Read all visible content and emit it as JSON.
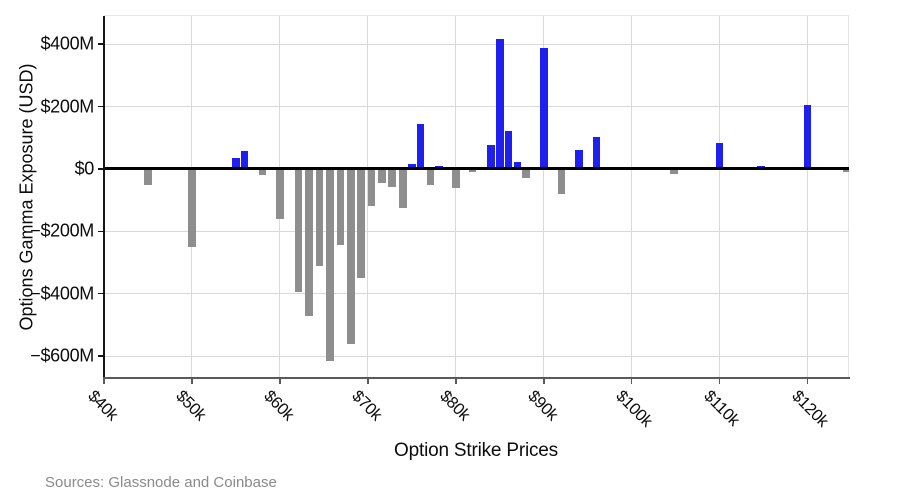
{
  "chart_data": {
    "type": "bar",
    "title": "",
    "xlabel": "Option Strike Prices",
    "ylabel": "Options Gamma Exposure (USD)",
    "source_note": "Sources: Glassnode and Coinbase",
    "x_unit": "strike price, thousands of USD",
    "y_unit": "millions of USD",
    "xlim": [
      40,
      124.7
    ],
    "ylim": [
      -670,
      490
    ],
    "grid": true,
    "colors": {
      "positive_bar": "#2020ee",
      "negative_bar": "#8e8e8e",
      "gridline": "#d9d9d9",
      "zero_line": "#000000",
      "axis_text": "#0c0c0c",
      "source_text": "#8a8a8a"
    },
    "y_ticks": [
      {
        "value": 400,
        "label": "$400M"
      },
      {
        "value": 200,
        "label": "$200M"
      },
      {
        "value": 0,
        "label": "$0"
      },
      {
        "value": -200,
        "label": "−$200M"
      },
      {
        "value": -400,
        "label": "−$400M"
      },
      {
        "value": -600,
        "label": "−$600M"
      }
    ],
    "x_ticks": [
      {
        "value": 40,
        "label": "$40k"
      },
      {
        "value": 50,
        "label": "$50k"
      },
      {
        "value": 60,
        "label": "$60k"
      },
      {
        "value": 70,
        "label": "$70k"
      },
      {
        "value": 80,
        "label": "$80k"
      },
      {
        "value": 90,
        "label": "$90k"
      },
      {
        "value": 100,
        "label": "$100k"
      },
      {
        "value": 110,
        "label": "$110k"
      },
      {
        "value": 120,
        "label": "$120k"
      }
    ],
    "bars": [
      {
        "strike_k": 45,
        "value_m": -50
      },
      {
        "strike_k": 50,
        "value_m": -250
      },
      {
        "strike_k": 52,
        "value_m": -5
      },
      {
        "strike_k": 54,
        "value_m": -5
      },
      {
        "strike_k": 55,
        "value_m": 35
      },
      {
        "strike_k": 56,
        "value_m": 58
      },
      {
        "strike_k": 58,
        "value_m": -20
      },
      {
        "strike_k": 60,
        "value_m": -160
      },
      {
        "strike_k": 62.1,
        "value_m": -395
      },
      {
        "strike_k": 63.3,
        "value_m": -470
      },
      {
        "strike_k": 64.5,
        "value_m": -310
      },
      {
        "strike_k": 65.7,
        "value_m": -615
      },
      {
        "strike_k": 66.9,
        "value_m": -245
      },
      {
        "strike_k": 68.1,
        "value_m": -560
      },
      {
        "strike_k": 69.2,
        "value_m": -350
      },
      {
        "strike_k": 70.4,
        "value_m": -118
      },
      {
        "strike_k": 71.6,
        "value_m": -45
      },
      {
        "strike_k": 72.75,
        "value_m": -58
      },
      {
        "strike_k": 74,
        "value_m": -125
      },
      {
        "strike_k": 75,
        "value_m": 15
      },
      {
        "strike_k": 76,
        "value_m": 145
      },
      {
        "strike_k": 77.1,
        "value_m": -50
      },
      {
        "strike_k": 78.1,
        "value_m": 10
      },
      {
        "strike_k": 80,
        "value_m": -62
      },
      {
        "strike_k": 81.9,
        "value_m": -10
      },
      {
        "strike_k": 84,
        "value_m": 78
      },
      {
        "strike_k": 85,
        "value_m": 415
      },
      {
        "strike_k": 86,
        "value_m": 120
      },
      {
        "strike_k": 87,
        "value_m": 22
      },
      {
        "strike_k": 88,
        "value_m": -30
      },
      {
        "strike_k": 90,
        "value_m": 388
      },
      {
        "strike_k": 92,
        "value_m": -80
      },
      {
        "strike_k": 94,
        "value_m": 60
      },
      {
        "strike_k": 96,
        "value_m": 103
      },
      {
        "strike_k": 100,
        "value_m": 7
      },
      {
        "strike_k": 104.8,
        "value_m": -15
      },
      {
        "strike_k": 110,
        "value_m": 82
      },
      {
        "strike_k": 114.7,
        "value_m": 10
      },
      {
        "strike_k": 120,
        "value_m": 205
      },
      {
        "strike_k": 124.5,
        "value_m": -10
      }
    ]
  }
}
